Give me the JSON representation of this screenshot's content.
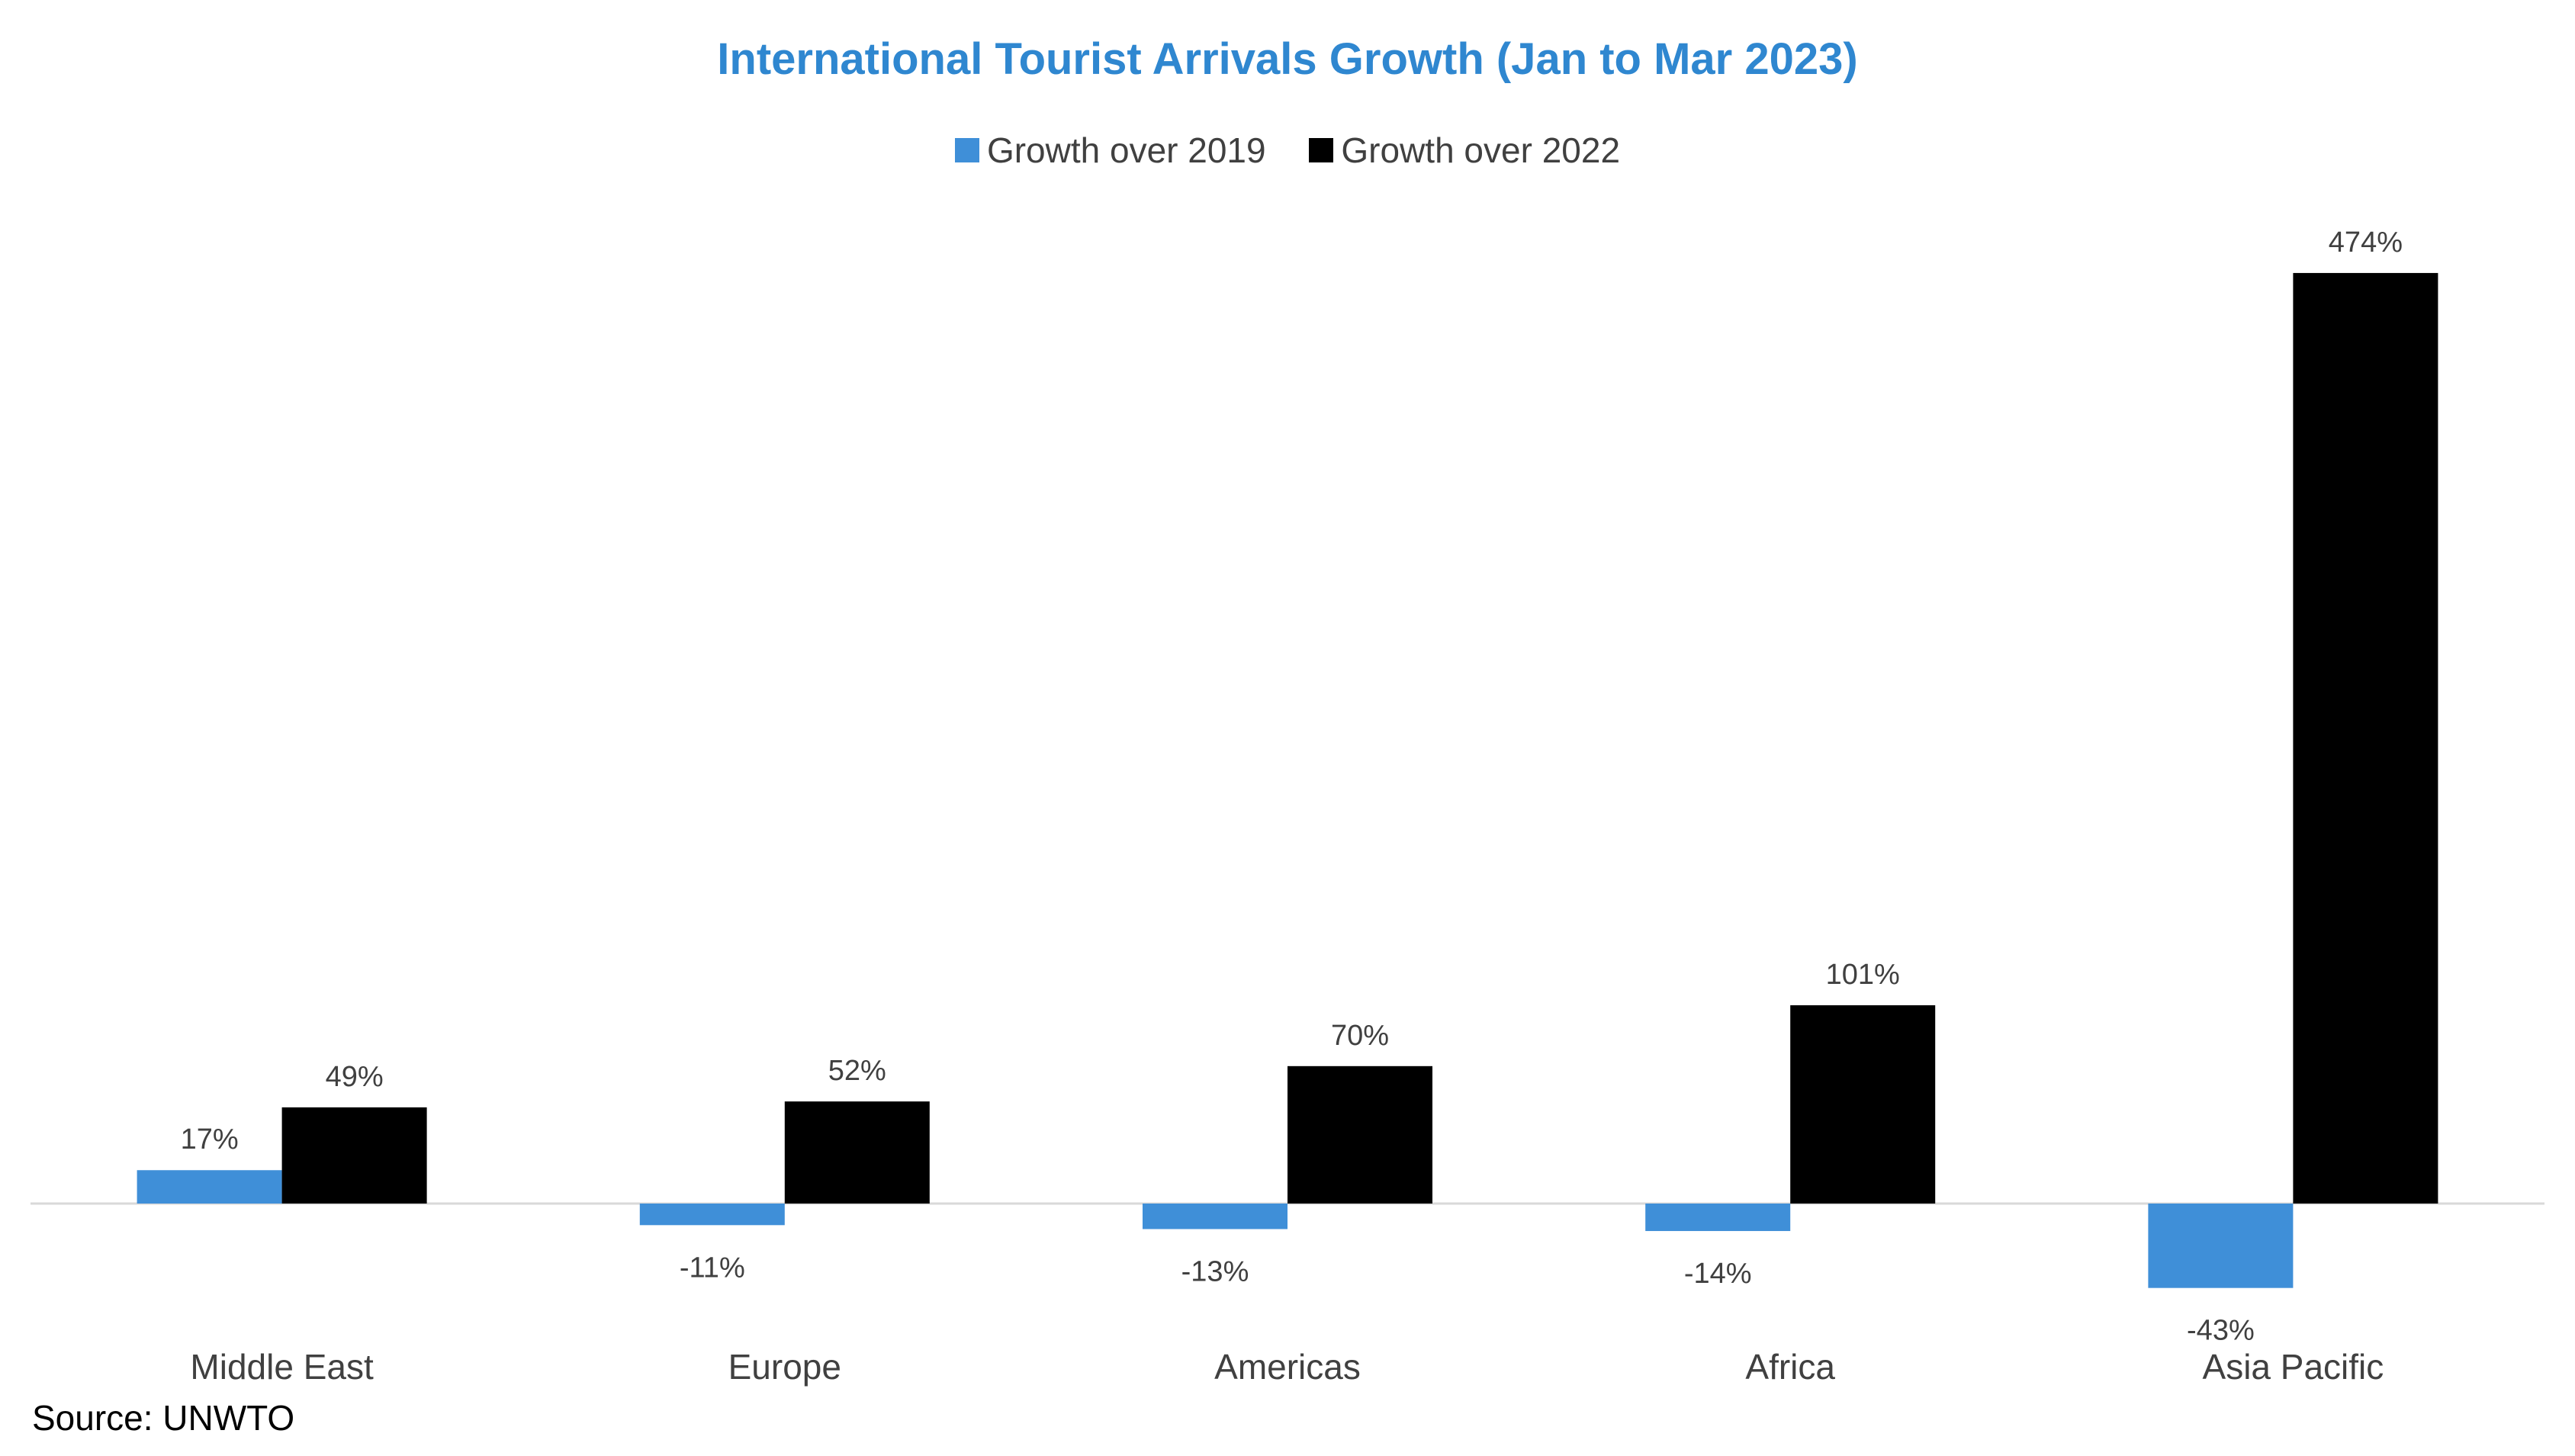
{
  "chart_data": {
    "type": "bar",
    "title": "International Tourist Arrivals Growth (Jan to Mar 2023)",
    "categories": [
      "Middle East",
      "Europe",
      "Americas",
      "Africa",
      "Asia Pacific"
    ],
    "series": [
      {
        "name": "Growth over 2019",
        "values": [
          17,
          -11,
          -13,
          -14,
          -43
        ],
        "labels": [
          "17%",
          "-11%",
          "-13%",
          "-14%",
          "-43%"
        ],
        "color": "#3F8FD8"
      },
      {
        "name": "Growth over 2022",
        "values": [
          49,
          52,
          70,
          101,
          474
        ],
        "labels": [
          "49%",
          "52%",
          "70%",
          "101%",
          "474%"
        ],
        "color": "#000000"
      }
    ],
    "legend": "top-center",
    "grid": false,
    "ylim": [
      -43,
      474
    ]
  },
  "source": "Source: UNWTO",
  "colors": {
    "title": "#2F87D0",
    "axis": "#D9D9D9",
    "text": "#404040"
  }
}
